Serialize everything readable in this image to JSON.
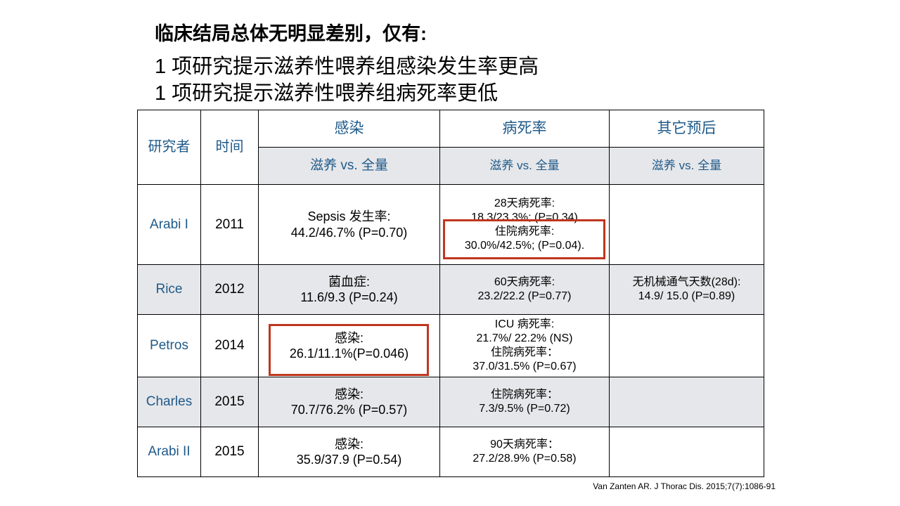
{
  "header": {
    "title": "临床结局总体无明显差别，仅有:",
    "points": [
      "1 项研究提示滋养性喂养组感染发生率更高",
      "1 项研究提示滋养性喂养组病死率更低"
    ]
  },
  "table": {
    "columns": [
      "研究者",
      "时间"
    ],
    "groups": [
      "感染",
      "病死率",
      "其它预后"
    ],
    "subheaders": [
      "滋养 vs. 全量",
      "滋养 vs. 全量",
      "滋养 vs. 全量"
    ],
    "rows": [
      {
        "study": "Arabi I",
        "year": "2011",
        "infection": [
          "Sepsis 发生率:",
          "44.2/46.7% (P=0.70)"
        ],
        "mortality": [
          "28天病死率:",
          "18.3/23.3%; (P=0.34)",
          "住院病死率:",
          "30.0%/42.5%; (P=0.04)."
        ]
      },
      {
        "study": "Rice",
        "year": "2012",
        "infection": [
          "菌血症:",
          "11.6/9.3 (P=0.24)"
        ],
        "mortality": [
          "60天病死率:",
          "23.2/22.2 (P=0.77)"
        ],
        "other": [
          "无机械通气天数(28d):",
          "14.9/ 15.0 (P=0.89)"
        ]
      },
      {
        "study": "Petros",
        "year": "2014",
        "infection": [
          "感染:",
          "26.1/11.1%(P=0.046)"
        ],
        "mortality": [
          "ICU 病死率:",
          "21.7%/ 22.2% (NS)",
          "住院病死率：",
          "37.0/31.5% (P=0.67)"
        ]
      },
      {
        "study": "Charles",
        "year": "2015",
        "infection": [
          "感染:",
          "70.7/76.2% (P=0.57)"
        ],
        "mortality": [
          "住院病死率：",
          "7.3/9.5% (P=0.72)"
        ]
      },
      {
        "study": "Arabi II",
        "year": "2015",
        "infection": [
          "感染:",
          "35.9/37.9 (P=0.54)"
        ],
        "mortality": [
          "90天病死率：",
          "27.2/28.9% (P=0.58)"
        ]
      }
    ]
  },
  "citation": "Van Zanten AR. J Thorac Dis. 2015;7(7):1086-91"
}
